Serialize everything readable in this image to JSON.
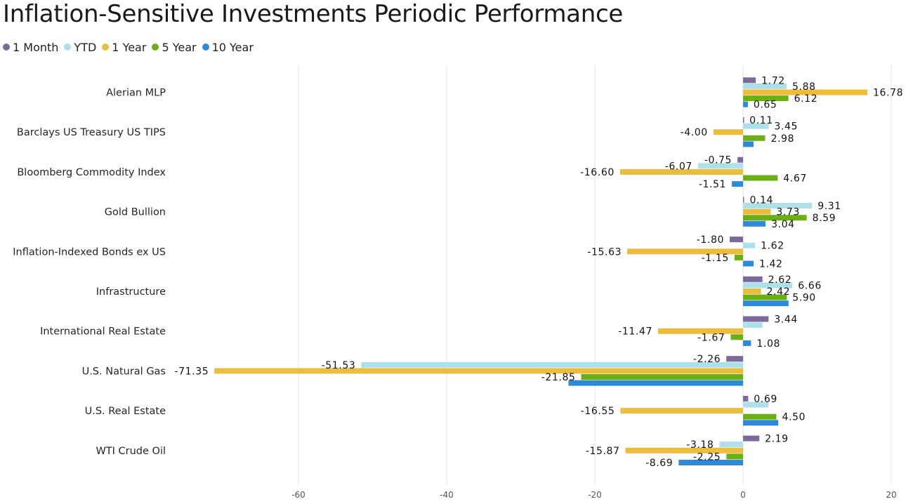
{
  "chart_data": {
    "type": "bar",
    "orientation": "horizontal",
    "title": "Inflation-Sensitive Investments Periodic Performance",
    "categories": [
      "Alerian MLP",
      "Barclays US Treasury US TIPS",
      "Bloomberg Commodity Index",
      "Gold Bullion",
      "Inflation-Indexed Bonds ex US",
      "Infrastructure",
      "International Real Estate",
      "U.S. Natural Gas",
      "U.S. Real Estate",
      "WTI Crude Oil"
    ],
    "series": [
      {
        "name": "1 Month",
        "color": "#7b6a9b",
        "values": [
          1.72,
          0.11,
          -0.75,
          0.14,
          -1.8,
          2.62,
          3.44,
          -2.26,
          0.69,
          2.19
        ]
      },
      {
        "name": "YTD",
        "color": "#aee0ea",
        "values": [
          5.88,
          3.45,
          -6.07,
          9.31,
          1.62,
          6.66,
          2.62,
          -51.53,
          3.43,
          -3.18
        ]
      },
      {
        "name": "1 Year",
        "color": "#ecbc3c",
        "values": [
          16.78,
          -4.0,
          -16.6,
          3.73,
          -15.63,
          2.42,
          -11.47,
          -71.35,
          -16.55,
          -15.87
        ]
      },
      {
        "name": "5 Year",
        "color": "#6ab015",
        "values": [
          6.12,
          2.98,
          4.67,
          8.59,
          -1.15,
          5.9,
          -1.67,
          -21.85,
          4.5,
          -2.25
        ]
      },
      {
        "name": "10 Year",
        "color": "#2e8ad8",
        "values": [
          0.65,
          1.42,
          -1.51,
          3.04,
          1.42,
          6.14,
          1.08,
          -23.56,
          4.75,
          -8.69
        ]
      }
    ],
    "data_labels": [
      [
        "1.72",
        "5.88",
        "16.78",
        "6.12",
        "0.65"
      ],
      [
        "0.11",
        "3.45",
        "-4.00",
        "2.98",
        ""
      ],
      [
        "-0.75",
        "-6.07",
        "-16.60",
        "4.67",
        "-1.51"
      ],
      [
        "0.14",
        "9.31",
        "3.73",
        "8.59",
        "3.04"
      ],
      [
        "-1.80",
        "1.62",
        "-15.63",
        "-1.15",
        "1.42"
      ],
      [
        "2.62",
        "6.66",
        "2.42",
        "5.90",
        ""
      ],
      [
        "3.44",
        "",
        "-11.47",
        "-1.67",
        "1.08"
      ],
      [
        "-2.26",
        "-51.53",
        "-71.35",
        "-21.85",
        ""
      ],
      [
        "0.69",
        "",
        "-16.55",
        "4.50",
        ""
      ],
      [
        "2.19",
        "-3.18",
        "-15.87",
        "-2.25",
        "-8.69"
      ]
    ],
    "x_ticks": [
      -60,
      -40,
      -20,
      0,
      20
    ],
    "xlim": [
      -80,
      20
    ],
    "grid": true,
    "legend_position": "top-left"
  }
}
